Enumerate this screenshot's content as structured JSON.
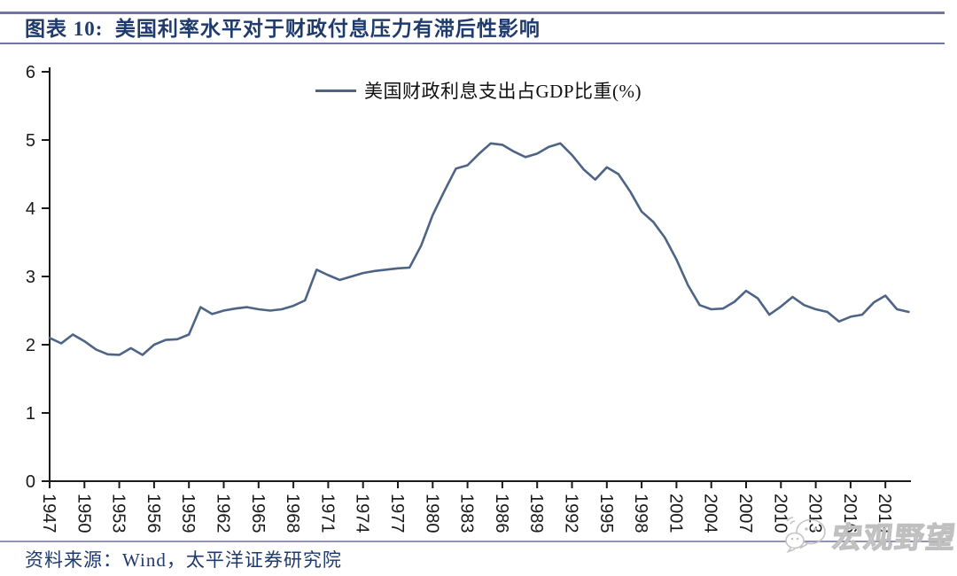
{
  "header": {
    "title": "图表 10:  美国利率水平对于财政付息压力有滞后性影响"
  },
  "legend": {
    "label": "美国财政利息支出占GDP比重(%)"
  },
  "footer": {
    "source": "资料来源：Wind，太平洋证券研究院"
  },
  "watermark": {
    "text": "宏观野望",
    "icon": "wechat-icon"
  },
  "colors": {
    "line": "#4e6485",
    "navy": "#1f3a6d",
    "rule": "#7173a3",
    "rule_light": "#9093b6",
    "axis": "#1a1a1a",
    "watermark_stroke": "#bfbfbf"
  },
  "chart_data": {
    "type": "line",
    "title": "",
    "xlabel": "",
    "ylabel": "",
    "ylim": [
      0,
      6
    ],
    "y_ticks": [
      0,
      1,
      2,
      3,
      4,
      5,
      6
    ],
    "x_ticks": [
      1947,
      1950,
      1953,
      1956,
      1959,
      1962,
      1965,
      1968,
      1971,
      1974,
      1977,
      1980,
      1983,
      1986,
      1989,
      1992,
      1995,
      1998,
      2001,
      2004,
      2007,
      2010,
      2013,
      2016,
      2019
    ],
    "grid": false,
    "legend_position": "top-center",
    "series": [
      {
        "name": "美国财政利息支出占GDP比重(%)",
        "x": [
          1947,
          1948,
          1949,
          1950,
          1951,
          1952,
          1953,
          1954,
          1955,
          1956,
          1957,
          1958,
          1959,
          1960,
          1961,
          1962,
          1963,
          1964,
          1965,
          1966,
          1967,
          1968,
          1969,
          1970,
          1971,
          1972,
          1973,
          1974,
          1975,
          1976,
          1977,
          1978,
          1979,
          1980,
          1981,
          1982,
          1983,
          1984,
          1985,
          1986,
          1987,
          1988,
          1989,
          1990,
          1991,
          1992,
          1993,
          1994,
          1995,
          1996,
          1997,
          1998,
          1999,
          2000,
          2001,
          2002,
          2003,
          2004,
          2005,
          2006,
          2007,
          2008,
          2009,
          2010,
          2011,
          2012,
          2013,
          2014,
          2015,
          2016,
          2017,
          2018,
          2019,
          2020,
          2021
        ],
        "values": [
          2.1,
          2.02,
          2.15,
          2.05,
          1.93,
          1.86,
          1.85,
          1.95,
          1.85,
          2.0,
          2.07,
          2.08,
          2.15,
          2.55,
          2.45,
          2.5,
          2.53,
          2.55,
          2.52,
          2.5,
          2.52,
          2.57,
          2.65,
          3.1,
          3.02,
          2.95,
          3.0,
          3.05,
          3.08,
          3.1,
          3.12,
          3.13,
          3.45,
          3.9,
          4.25,
          4.58,
          4.63,
          4.8,
          4.95,
          4.93,
          4.83,
          4.75,
          4.8,
          4.9,
          4.95,
          4.78,
          4.57,
          4.42,
          4.6,
          4.5,
          4.25,
          3.95,
          3.8,
          3.57,
          3.25,
          2.87,
          2.58,
          2.52,
          2.53,
          2.63,
          2.79,
          2.68,
          2.44,
          2.56,
          2.7,
          2.58,
          2.52,
          2.48,
          2.34,
          2.41,
          2.44,
          2.62,
          2.72,
          2.52,
          2.48
        ]
      }
    ]
  }
}
